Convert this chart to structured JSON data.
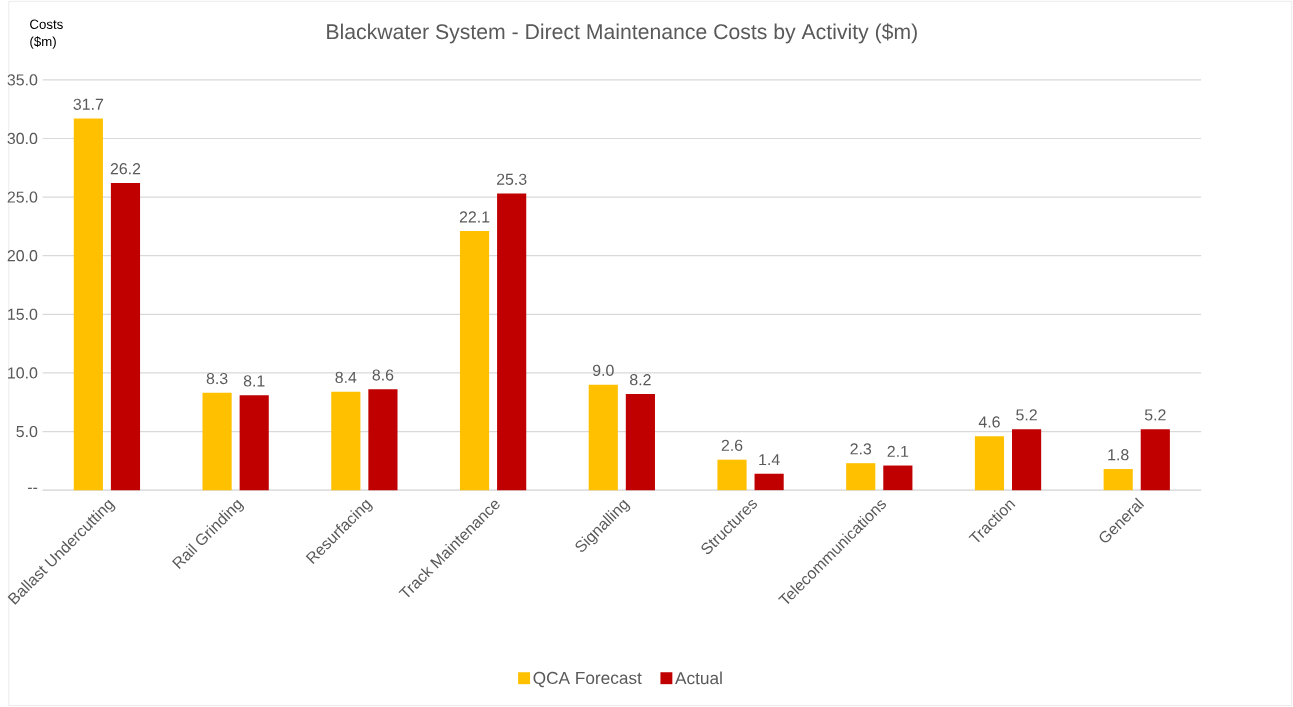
{
  "chart_data": {
    "type": "bar",
    "title": "Blackwater System - Direct Maintenance Costs by Activity ($m)",
    "ylabel": "Costs ($m)",
    "categories": [
      "Ballast Undercutting",
      "Rail Grinding",
      "Resurfacing",
      "Track Maintenance",
      "Signalling",
      "Structures",
      "Telecommunications",
      "Traction",
      "General"
    ],
    "series": [
      {
        "name": "QCA Forecast",
        "color": "#ffc000",
        "values": [
          31.7,
          8.3,
          8.4,
          22.1,
          9.0,
          2.6,
          2.3,
          4.6,
          1.8
        ],
        "value_labels": [
          "31.7",
          "8.3",
          "8.4",
          "22.1",
          "9.0",
          "2.6",
          "2.3",
          "4.6",
          "1.8"
        ]
      },
      {
        "name": "Actual",
        "color": "#c00000",
        "values": [
          26.2,
          8.1,
          8.6,
          25.3,
          8.2,
          1.4,
          2.1,
          5.2,
          5.2
        ],
        "value_labels": [
          "26.2",
          "8.1",
          "8.6",
          "25.3",
          "8.2",
          "1.4",
          "2.1",
          "5.2",
          "5.2"
        ]
      }
    ],
    "ylim": [
      0,
      35
    ],
    "yticks": [
      {
        "value": 0,
        "label": "--"
      },
      {
        "value": 5,
        "label": "5.0"
      },
      {
        "value": 10,
        "label": "10.0"
      },
      {
        "value": 15,
        "label": "15.0"
      },
      {
        "value": 20,
        "label": "20.0"
      },
      {
        "value": 25,
        "label": "25.0"
      },
      {
        "value": 30,
        "label": "30.0"
      },
      {
        "value": 35,
        "label": "35.0"
      }
    ],
    "grid": "y",
    "legend": "bottom"
  }
}
